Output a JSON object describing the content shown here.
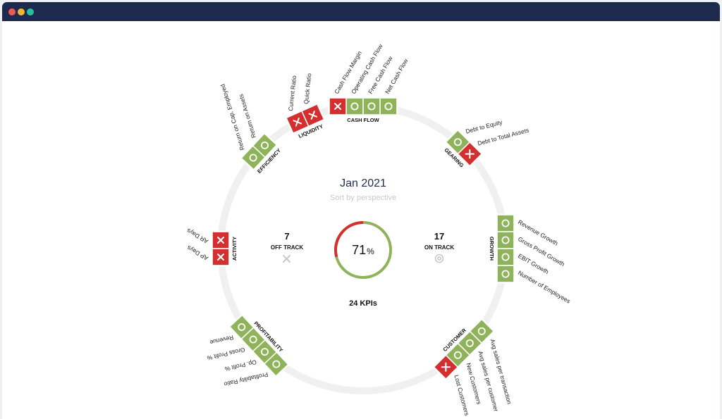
{
  "window": {
    "dots": [
      "close",
      "minimize",
      "maximize"
    ]
  },
  "center": {
    "title": "Jan 2021",
    "subtitle": "Sort by perspective",
    "off_track": {
      "count": "7",
      "label": "OFF TRACK"
    },
    "on_track": {
      "count": "17",
      "label": "ON TRACK"
    },
    "percent": "71",
    "percent_sign": "%",
    "percent_fraction": 0.71,
    "kpi_total": "24 KPIs"
  },
  "colors": {
    "on_track": "#8fb35a",
    "off_track": "#d32f2f",
    "ring": "#f0f0f0"
  },
  "perspectives": [
    {
      "name": "CASH FLOW",
      "kpis": [
        {
          "label": "Cash Flow Margin",
          "status": "off"
        },
        {
          "label": "Operating Cash Flow",
          "status": "on"
        },
        {
          "label": "Free Cash Flow",
          "status": "on"
        },
        {
          "label": "Net Cash Flow",
          "status": "on"
        }
      ]
    },
    {
      "name": "GEARING",
      "kpis": [
        {
          "label": "Debt to Equity",
          "status": "on"
        },
        {
          "label": "Debt to Total Assets",
          "status": "off"
        }
      ]
    },
    {
      "name": "GROWTH",
      "kpis": [
        {
          "label": "Revenue Growth",
          "status": "on"
        },
        {
          "label": "Gross Profit Growth",
          "status": "on"
        },
        {
          "label": "EBIT Growth",
          "status": "on"
        },
        {
          "label": "Number of Employees",
          "status": "on"
        }
      ]
    },
    {
      "name": "CUSTOMER",
      "kpis": [
        {
          "label": "Avg sales per transaction",
          "status": "on"
        },
        {
          "label": "Avg sales per customer",
          "status": "on"
        },
        {
          "label": "New Customers",
          "status": "on"
        },
        {
          "label": "Lost Customers",
          "status": "off"
        }
      ]
    },
    {
      "name": "PROFITABILITY",
      "kpis": [
        {
          "label": "Profitability Ratio",
          "status": "on"
        },
        {
          "label": "Op. Profit %",
          "status": "on"
        },
        {
          "label": "Gross Profit %",
          "status": "on"
        },
        {
          "label": "Revenue",
          "status": "on"
        }
      ]
    },
    {
      "name": "ACTIVITY",
      "kpis": [
        {
          "label": "AP Days",
          "status": "off"
        },
        {
          "label": "AR Days",
          "status": "off"
        }
      ]
    },
    {
      "name": "EFFICIENCY",
      "kpis": [
        {
          "label": "Return on Cap. Employed",
          "status": "on"
        },
        {
          "label": "Return on Assets",
          "status": "on"
        }
      ]
    },
    {
      "name": "LIQUIDITY",
      "kpis": [
        {
          "label": "Current Ratio",
          "status": "off"
        },
        {
          "label": "Quick Ratio",
          "status": "off"
        }
      ]
    }
  ]
}
